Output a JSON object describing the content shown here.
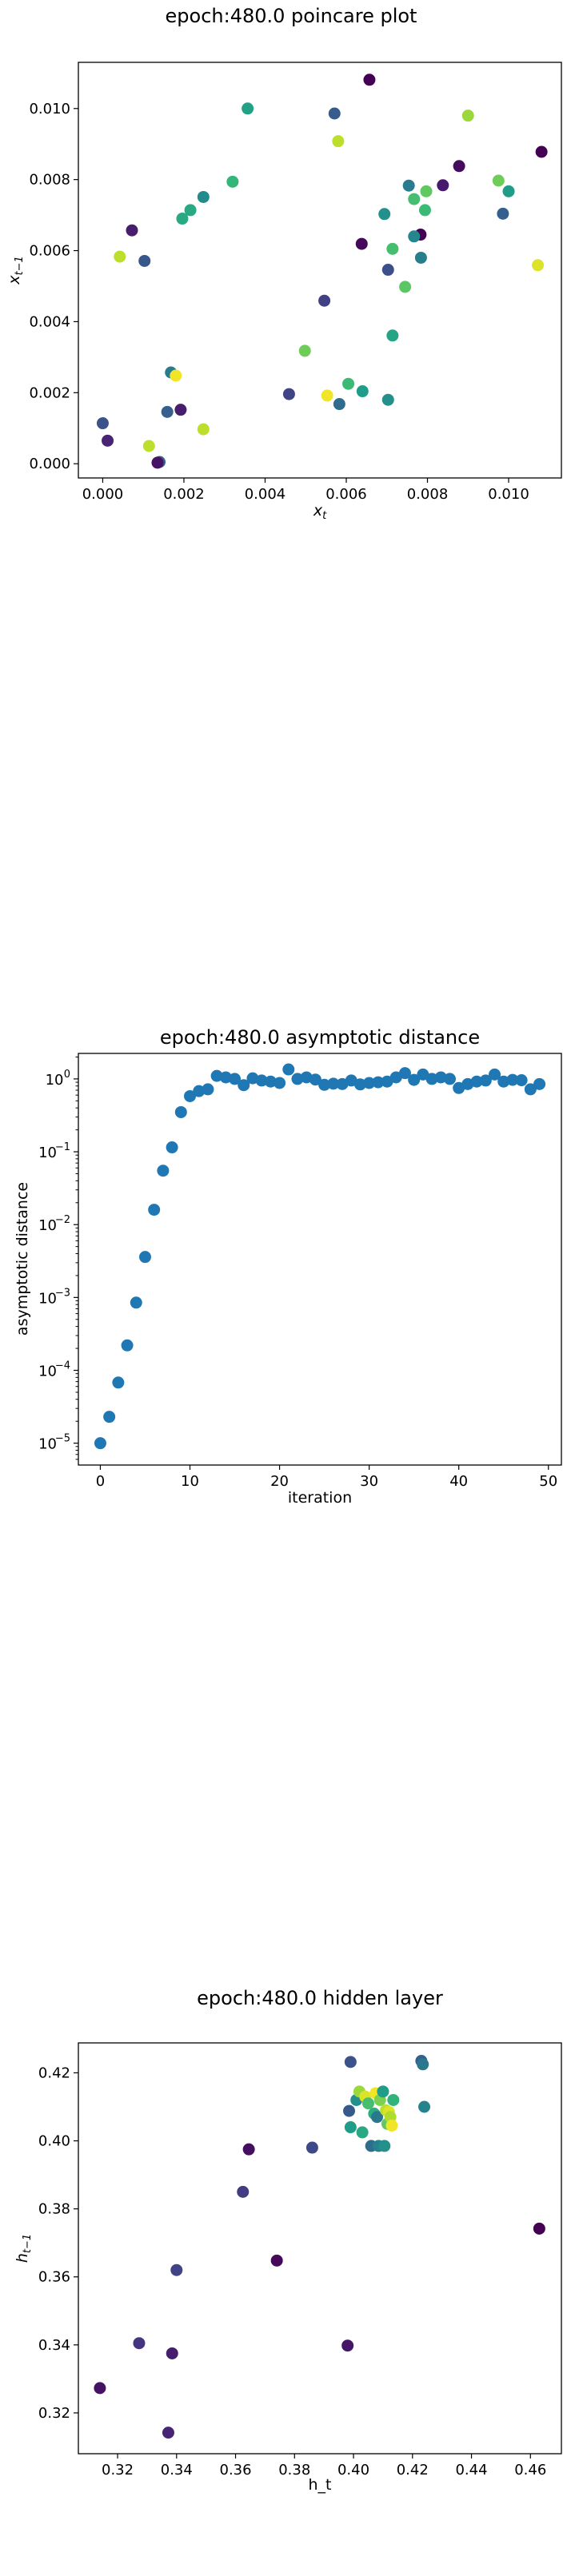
{
  "chart_data": [
    {
      "type": "scatter",
      "title": "epoch:480.0 poincare plot",
      "xlabel": "x_t",
      "ylabel": "x_{t-1}",
      "xlim": [
        -0.0006,
        0.0113
      ],
      "ylim": [
        -0.0004,
        0.0113
      ],
      "x_ticks": [
        0.0,
        0.002,
        0.004,
        0.006,
        0.008,
        0.01
      ],
      "x_tick_labels": [
        "0.000",
        "0.002",
        "0.004",
        "0.006",
        "0.008",
        "0.010"
      ],
      "y_ticks": [
        0.0,
        0.002,
        0.004,
        0.006,
        0.008,
        0.01
      ],
      "y_tick_labels": [
        "0.000",
        "0.002",
        "0.004",
        "0.006",
        "0.008",
        "0.010"
      ],
      "colormap": "viridis",
      "points": [
        {
          "x": 0.00657,
          "y": 0.01081,
          "c": 0.0
        },
        {
          "x": 0.00357,
          "y": 0.01,
          "c": 0.57
        },
        {
          "x": 0.00571,
          "y": 0.00986,
          "c": 0.29
        },
        {
          "x": 0.009,
          "y": 0.0098,
          "c": 0.85
        },
        {
          "x": 0.0058,
          "y": 0.00908,
          "c": 0.9
        },
        {
          "x": 0.01081,
          "y": 0.00878,
          "c": 0.0
        },
        {
          "x": 0.00878,
          "y": 0.00838,
          "c": 0.03
        },
        {
          "x": 0.00975,
          "y": 0.00797,
          "c": 0.78
        },
        {
          "x": 0.0032,
          "y": 0.00794,
          "c": 0.66
        },
        {
          "x": 0.00838,
          "y": 0.00784,
          "c": 0.07
        },
        {
          "x": 0.00754,
          "y": 0.00783,
          "c": 0.42
        },
        {
          "x": 0.01,
          "y": 0.00767,
          "c": 0.55
        },
        {
          "x": 0.00797,
          "y": 0.00767,
          "c": 0.75
        },
        {
          "x": 0.00248,
          "y": 0.00751,
          "c": 0.48
        },
        {
          "x": 0.00767,
          "y": 0.00745,
          "c": 0.7
        },
        {
          "x": 0.00216,
          "y": 0.00714,
          "c": 0.6
        },
        {
          "x": 0.00794,
          "y": 0.00714,
          "c": 0.68
        },
        {
          "x": 0.00986,
          "y": 0.00704,
          "c": 0.3
        },
        {
          "x": 0.00694,
          "y": 0.00703,
          "c": 0.5
        },
        {
          "x": 0.00196,
          "y": 0.0069,
          "c": 0.6
        },
        {
          "x": 0.00072,
          "y": 0.00657,
          "c": 0.08
        },
        {
          "x": 0.00783,
          "y": 0.00645,
          "c": 0.0
        },
        {
          "x": 0.00767,
          "y": 0.0064,
          "c": 0.46
        },
        {
          "x": 0.00638,
          "y": 0.00619,
          "c": 0.02
        },
        {
          "x": 0.00714,
          "y": 0.00605,
          "c": 0.7
        },
        {
          "x": 0.00042,
          "y": 0.00583,
          "c": 0.9
        },
        {
          "x": 0.00784,
          "y": 0.0058,
          "c": 0.43
        },
        {
          "x": 0.00103,
          "y": 0.00571,
          "c": 0.27
        },
        {
          "x": 0.01072,
          "y": 0.00559,
          "c": 0.95
        },
        {
          "x": 0.00703,
          "y": 0.00546,
          "c": 0.24
        },
        {
          "x": 0.00745,
          "y": 0.00498,
          "c": 0.74
        },
        {
          "x": 0.00546,
          "y": 0.00459,
          "c": 0.19
        },
        {
          "x": 0.00714,
          "y": 0.00361,
          "c": 0.58
        },
        {
          "x": 0.00498,
          "y": 0.00318,
          "c": 0.78
        },
        {
          "x": 0.00168,
          "y": 0.00257,
          "c": 0.42
        },
        {
          "x": 0.0018,
          "y": 0.00248,
          "c": 0.98
        },
        {
          "x": 0.00605,
          "y": 0.00225,
          "c": 0.68
        },
        {
          "x": 0.0064,
          "y": 0.00204,
          "c": 0.55
        },
        {
          "x": 0.00459,
          "y": 0.00196,
          "c": 0.2
        },
        {
          "x": 0.00553,
          "y": 0.00192,
          "c": 0.98
        },
        {
          "x": 0.00703,
          "y": 0.0018,
          "c": 0.5
        },
        {
          "x": 0.00583,
          "y": 0.00168,
          "c": 0.35
        },
        {
          "x": 0.00192,
          "y": 0.00152,
          "c": 0.08
        },
        {
          "x": 0.00159,
          "y": 0.00146,
          "c": 0.3
        },
        {
          "x": 0.0,
          "y": 0.00114,
          "c": 0.25
        },
        {
          "x": 0.00248,
          "y": 0.00097,
          "c": 0.9
        },
        {
          "x": 0.00012,
          "y": 0.00065,
          "c": 0.1
        },
        {
          "x": 0.00114,
          "y": 0.0005,
          "c": 0.9
        },
        {
          "x": 0.0014,
          "y": 5e-05,
          "c": 0.3
        },
        {
          "x": 0.00135,
          "y": 3e-05,
          "c": 0.05
        }
      ]
    },
    {
      "type": "scatter",
      "title": "epoch:480.0 asymptotic distance",
      "xlabel": "iteration",
      "ylabel": "asymptotic distance",
      "yscale": "log",
      "xlim": [
        -2.45,
        51.45
      ],
      "ylim_log10": [
        -5.3,
        0.35
      ],
      "x_ticks": [
        0,
        10,
        20,
        30,
        40,
        50
      ],
      "x_tick_labels": [
        "0",
        "10",
        "20",
        "30",
        "40",
        "50"
      ],
      "y_ticks_log10": [
        -5,
        -4,
        -3,
        -2,
        -1,
        0
      ],
      "y_tick_labels": [
        "10",
        "10",
        "10",
        "10",
        "10",
        "10"
      ],
      "y_tick_exponents": [
        "−5",
        "−4",
        "−3",
        "−2",
        "−1",
        "0"
      ],
      "color": "#1f77b4",
      "x": [
        0,
        1,
        2,
        3,
        4,
        5,
        6,
        7,
        8,
        9,
        10,
        11,
        12,
        13,
        14,
        15,
        16,
        17,
        18,
        19,
        20,
        21,
        22,
        23,
        24,
        25,
        26,
        27,
        28,
        29,
        30,
        31,
        32,
        33,
        34,
        35,
        36,
        37,
        38,
        39,
        40,
        41,
        42,
        43,
        44,
        45,
        46,
        47,
        48,
        49
      ],
      "y": [
        1e-05,
        2.3e-05,
        6.8e-05,
        0.00022,
        0.00085,
        0.0036,
        0.016,
        0.055,
        0.115,
        0.35,
        0.58,
        0.68,
        0.72,
        1.1,
        1.05,
        1.0,
        0.82,
        1.02,
        0.95,
        0.92,
        0.88,
        1.35,
        1.0,
        1.05,
        0.98,
        0.83,
        0.86,
        0.85,
        0.95,
        0.84,
        0.88,
        0.9,
        0.92,
        1.05,
        1.2,
        0.97,
        1.15,
        1.0,
        1.05,
        1.0,
        0.75,
        0.85,
        0.92,
        0.95,
        1.15,
        0.92,
        0.97,
        0.96,
        0.72,
        0.85
      ]
    },
    {
      "type": "scatter",
      "title": "epoch:480.0 hidden layer",
      "xlabel": "h_t",
      "ylabel": "h_{t-1}",
      "xlim": [
        0.3067,
        0.4705
      ],
      "ylim": [
        0.308,
        0.4288
      ],
      "x_ticks": [
        0.32,
        0.34,
        0.36,
        0.38,
        0.4,
        0.42,
        0.44,
        0.46
      ],
      "x_tick_labels": [
        "0.32",
        "0.34",
        "0.36",
        "0.38",
        "0.40",
        "0.42",
        "0.44",
        "0.46"
      ],
      "y_ticks": [
        0.32,
        0.34,
        0.36,
        0.38,
        0.4,
        0.42
      ],
      "y_tick_labels": [
        "0.32",
        "0.34",
        "0.36",
        "0.38",
        "0.40",
        "0.42"
      ],
      "colormap": "viridis",
      "points": [
        {
          "x": 0.314,
          "y": 0.3273,
          "c": 0.05
        },
        {
          "x": 0.3273,
          "y": 0.3405,
          "c": 0.15
        },
        {
          "x": 0.3372,
          "y": 0.3142,
          "c": 0.1
        },
        {
          "x": 0.3385,
          "y": 0.3375,
          "c": 0.08
        },
        {
          "x": 0.34,
          "y": 0.362,
          "c": 0.2
        },
        {
          "x": 0.3625,
          "y": 0.385,
          "c": 0.18
        },
        {
          "x": 0.3645,
          "y": 0.3975,
          "c": 0.04
        },
        {
          "x": 0.374,
          "y": 0.3648,
          "c": 0.02
        },
        {
          "x": 0.386,
          "y": 0.398,
          "c": 0.22
        },
        {
          "x": 0.398,
          "y": 0.3398,
          "c": 0.06
        },
        {
          "x": 0.3985,
          "y": 0.4088,
          "c": 0.28
        },
        {
          "x": 0.399,
          "y": 0.404,
          "c": 0.55
        },
        {
          "x": 0.399,
          "y": 0.4232,
          "c": 0.25
        },
        {
          "x": 0.401,
          "y": 0.412,
          "c": 0.5
        },
        {
          "x": 0.402,
          "y": 0.4145,
          "c": 0.85
        },
        {
          "x": 0.403,
          "y": 0.4025,
          "c": 0.6
        },
        {
          "x": 0.404,
          "y": 0.413,
          "c": 0.95
        },
        {
          "x": 0.405,
          "y": 0.411,
          "c": 0.7
        },
        {
          "x": 0.406,
          "y": 0.3985,
          "c": 0.35
        },
        {
          "x": 0.407,
          "y": 0.408,
          "c": 0.62
        },
        {
          "x": 0.4075,
          "y": 0.414,
          "c": 0.98
        },
        {
          "x": 0.408,
          "y": 0.407,
          "c": 0.4
        },
        {
          "x": 0.4085,
          "y": 0.3985,
          "c": 0.45
        },
        {
          "x": 0.409,
          "y": 0.412,
          "c": 0.8
        },
        {
          "x": 0.41,
          "y": 0.4145,
          "c": 0.55
        },
        {
          "x": 0.4105,
          "y": 0.3985,
          "c": 0.5
        },
        {
          "x": 0.411,
          "y": 0.409,
          "c": 0.9
        },
        {
          "x": 0.4115,
          "y": 0.405,
          "c": 0.75
        },
        {
          "x": 0.412,
          "y": 0.4085,
          "c": 0.95
        },
        {
          "x": 0.4125,
          "y": 0.407,
          "c": 0.88
        },
        {
          "x": 0.413,
          "y": 0.4045,
          "c": 0.98
        },
        {
          "x": 0.4135,
          "y": 0.412,
          "c": 0.65
        },
        {
          "x": 0.423,
          "y": 0.4235,
          "c": 0.3
        },
        {
          "x": 0.4235,
          "y": 0.4225,
          "c": 0.4
        },
        {
          "x": 0.424,
          "y": 0.41,
          "c": 0.45
        },
        {
          "x": 0.463,
          "y": 0.3742,
          "c": 0.0
        }
      ]
    }
  ]
}
